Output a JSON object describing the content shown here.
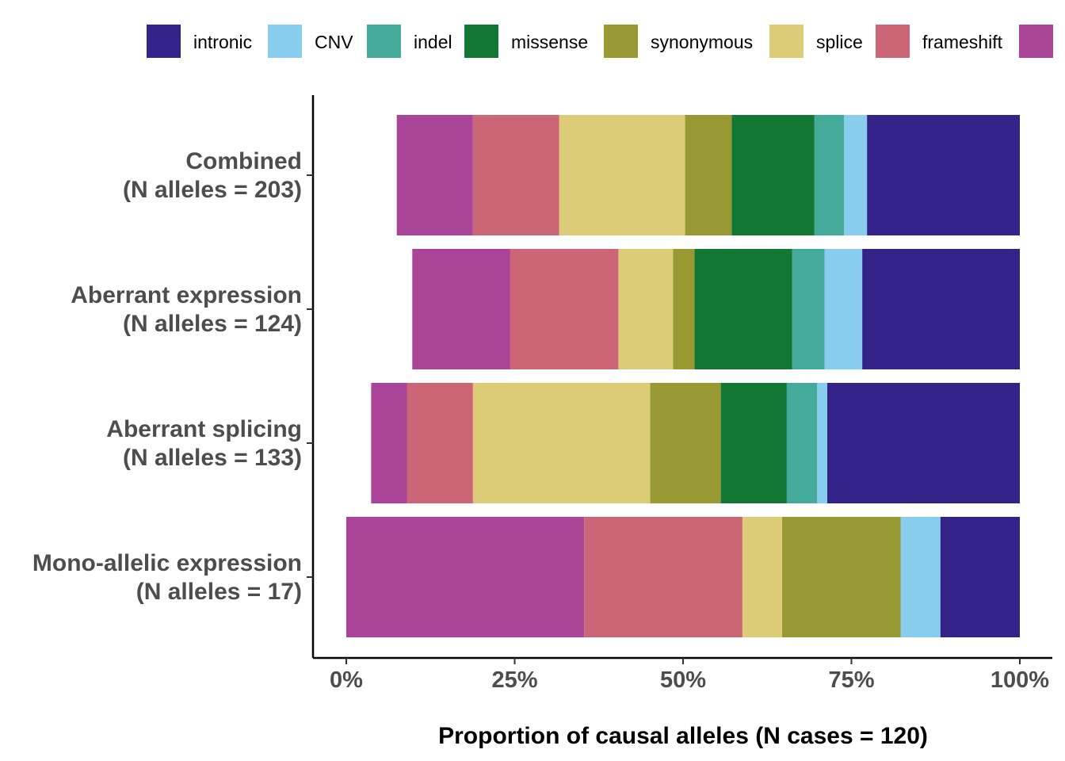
{
  "chart_data": {
    "type": "bar",
    "orientation": "horizontal",
    "stacked": true,
    "xlabel": "Proportion of causal alleles (N cases = 120)",
    "ylabel": "",
    "xlim": [
      0,
      1
    ],
    "x_ticks": [
      {
        "value": 0,
        "label": "0%"
      },
      {
        "value": 0.25,
        "label": "25%"
      },
      {
        "value": 0.5,
        "label": "50%"
      },
      {
        "value": 0.75,
        "label": "75%"
      },
      {
        "value": 1.0,
        "label": "100%"
      }
    ],
    "legend_position": "top",
    "grid": false,
    "categories": [
      {
        "line1": "Combined",
        "line2": "(N alleles = 203)"
      },
      {
        "line1": "Aberrant expression",
        "line2": "(N alleles = 124)"
      },
      {
        "line1": "Aberrant splicing",
        "line2": "(N alleles = 133)"
      },
      {
        "line1": "Mono-allelic expression",
        "line2": "(N alleles = 17)"
      }
    ],
    "series": [
      {
        "name": "intronic",
        "color": "#332288",
        "values": [
          0.227,
          0.234,
          0.286,
          0.118
        ]
      },
      {
        "name": "CNV",
        "color": "#88CCEE",
        "values": [
          0.034,
          0.056,
          0.015,
          0.059
        ]
      },
      {
        "name": "indel",
        "color": "#44AA99",
        "values": [
          0.044,
          0.048,
          0.045,
          0.0
        ]
      },
      {
        "name": "missense",
        "color": "#117733",
        "values": [
          0.123,
          0.145,
          0.098,
          0.0
        ]
      },
      {
        "name": "synonymous",
        "color": "#999933",
        "values": [
          0.069,
          0.032,
          0.105,
          0.176
        ]
      },
      {
        "name": "splice",
        "color": "#DDCC77",
        "values": [
          0.187,
          0.081,
          0.263,
          0.059
        ]
      },
      {
        "name": "frameshift",
        "color": "#CC6677",
        "values": [
          0.128,
          0.161,
          0.098,
          0.235
        ]
      },
      {
        "name": "",
        "color": "#AA4499",
        "values": [
          0.113,
          0.145,
          0.053,
          0.353
        ]
      }
    ]
  }
}
